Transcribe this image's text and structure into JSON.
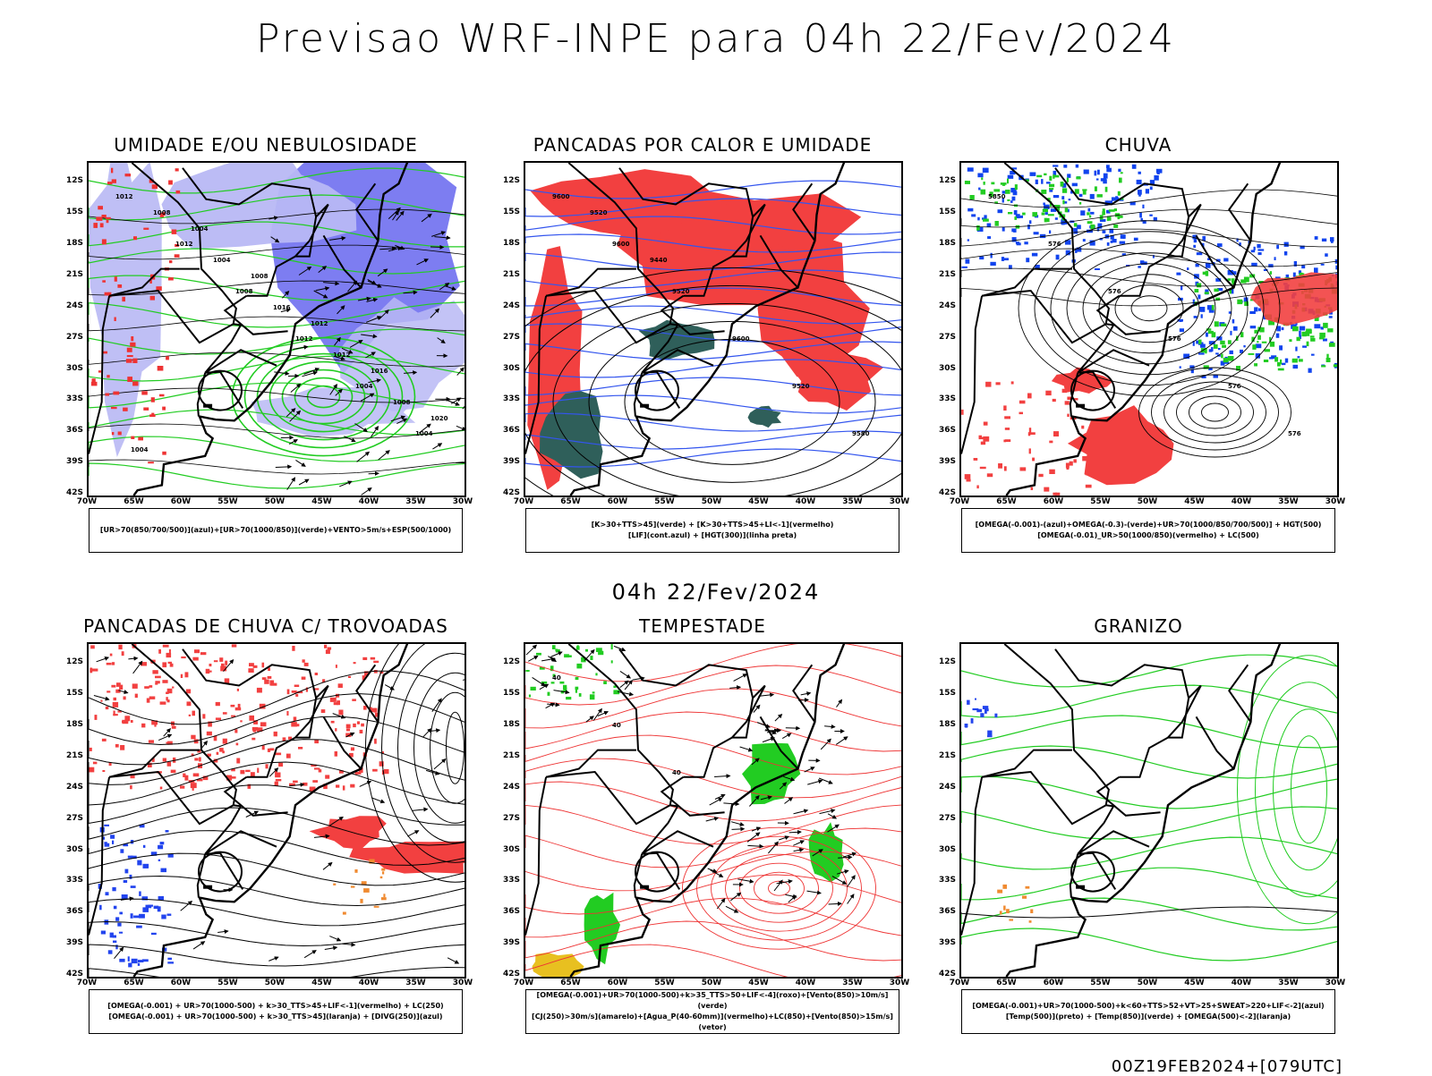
{
  "title": "Previsao WRF-INPE  para 04h 22/Fev/2024",
  "mid_title": "04h 22/Fev/2024",
  "footer": "00Z19FEB2024+[079UTC]",
  "axis": {
    "lat": [
      "12S",
      "15S",
      "18S",
      "21S",
      "24S",
      "27S",
      "30S",
      "33S",
      "36S",
      "39S",
      "42S"
    ],
    "lon": [
      "70W",
      "65W",
      "60W",
      "55W",
      "50W",
      "45W",
      "40W",
      "35W",
      "30W"
    ]
  },
  "panels": [
    {
      "title": "UMIDADE E/OU NEBULOSIDADE",
      "legend": [
        "[UR>70(850/700/500)](azul)+[UR>70(1000/850)](verde)+VENTO>5m/s+ESP(500/1000)"
      ],
      "contour_labels": [
        "1012",
        "1012",
        "1008",
        "1012",
        "1004",
        "1004",
        "1008",
        "1004",
        "1016",
        "1012",
        "1008",
        "1004",
        "1004",
        "1008",
        "1012",
        "1016",
        "1020"
      ],
      "colors": {
        "fill": "#6f6ff0",
        "fill_light": "#b8b8f4",
        "contour": "#22cc22",
        "accent": "#ee3333"
      }
    },
    {
      "title": "PANCADAS POR CALOR E UMIDADE",
      "legend": [
        "[K>30+TTS>45](verde) + [K>30+TTS>45+LI<-1](vermelho)",
        "[LIF](cont.azul) + [HGT(300)](linha preta)"
      ],
      "contour_labels": [
        "9600",
        "9600",
        "9520",
        "9600",
        "9520",
        "9580",
        "9520",
        "9440"
      ],
      "colors": {
        "fill": "#f24040",
        "fill_dark": "#2f5f5a",
        "contour": "#3355ee"
      }
    },
    {
      "title": "CHUVA",
      "legend": [
        "[OMEGA(-0.001)-(azul)+OMEGA(-0.3)-(verde)+UR>70(1000/850/700/500)] + HGT(500)",
        "[OMEGA(-0.01)_UR>50(1000/850)(vermelho) + LC(500)"
      ],
      "contour_labels": [
        "5850",
        "576",
        "576",
        "576",
        "576",
        "576"
      ],
      "colors": {
        "blue": "#1144ee",
        "green": "#22cc22",
        "red": "#f24040"
      }
    },
    {
      "title": "PANCADAS DE CHUVA C/ TROVOADAS",
      "legend": [
        "[OMEGA(-0.001) + UR>70(1000-500) + k>30_TTS>45+LIF<-1](vermelho) + LC(250)",
        "[OMEGA(-0.001) + UR>70(1000-500) + k>30_TTS>45](laranja) + [DIVG(250)](azul)"
      ],
      "contour_labels": [],
      "colors": {
        "red": "#f24040",
        "orange": "#f08a30",
        "blue": "#2244ee"
      }
    },
    {
      "title": "TEMPESTADE",
      "legend": [
        "[OMEGA(-0.001)+UR>70(1000-500)+k>35_TTS>50+LIF<-4](roxo)+[Vento(850)>10m/s](verde)",
        "[CJ(250)>30m/s](amarelo)+[Agua_P(40-60mm)](vermelho)+LC(850)+[Vento(850)>15m/s](vetor)"
      ],
      "contour_labels": [
        "40",
        "40",
        "40"
      ],
      "colors": {
        "green": "#22cc22",
        "red": "#ee3333",
        "yellow": "#e8c020"
      }
    },
    {
      "title": "GRANIZO",
      "legend": [
        "[OMEGA(-0.001)+UR>70(1000-500)+k<60+TTS>52+VT>25+SWEAT>220+LIF<-2](azul)",
        "[Temp(500)](preto) + [Temp(850)](verde) + [OMEGA(500)<-2](laranja)"
      ],
      "contour_labels": [],
      "colors": {
        "green": "#22cc22",
        "orange": "#f08a30",
        "blue": "#2244ee"
      }
    }
  ]
}
